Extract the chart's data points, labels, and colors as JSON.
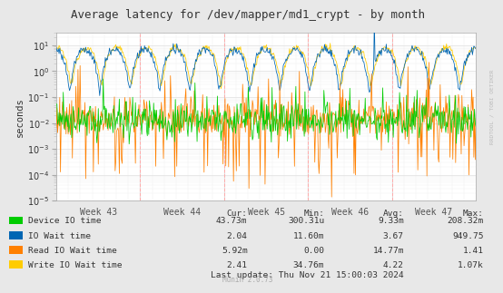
{
  "title": "Average latency for /dev/mapper/md1_crypt - by month",
  "ylabel": "seconds",
  "watermark": "RRDTOOL / TOBI OETIKER",
  "munin_version": "Munin 2.0.73",
  "last_update": "Last update: Thu Nov 21 15:00:03 2024",
  "x_labels": [
    "Week 43",
    "Week 44",
    "Week 45",
    "Week 46",
    "Week 47"
  ],
  "ylim_log_min": 1e-05,
  "ylim_log_max": 30,
  "bg_color": "#e8e8e8",
  "plot_bg_color": "#ffffff",
  "grid_color": "#dddddd",
  "minor_grid_color": "#eeeeee",
  "legend": [
    {
      "label": "Device IO time",
      "color": "#00cc00"
    },
    {
      "label": "IO Wait time",
      "color": "#0066b3"
    },
    {
      "label": "Read IO Wait time",
      "color": "#ff8000"
    },
    {
      "label": "Write IO Wait time",
      "color": "#ffcc00"
    }
  ],
  "stats_headers": [
    "Cur:",
    "Min:",
    "Avg:",
    "Max:"
  ],
  "stats": [
    [
      "43.73m",
      "300.31u",
      "9.33m",
      "208.32m"
    ],
    [
      "2.04",
      "11.60m",
      "3.67",
      "949.75"
    ],
    [
      "5.92m",
      "0.00",
      "14.77m",
      "1.41"
    ],
    [
      "2.41",
      "34.76m",
      "4.22",
      "1.07k"
    ]
  ],
  "n_points": 600,
  "seed": 12345
}
